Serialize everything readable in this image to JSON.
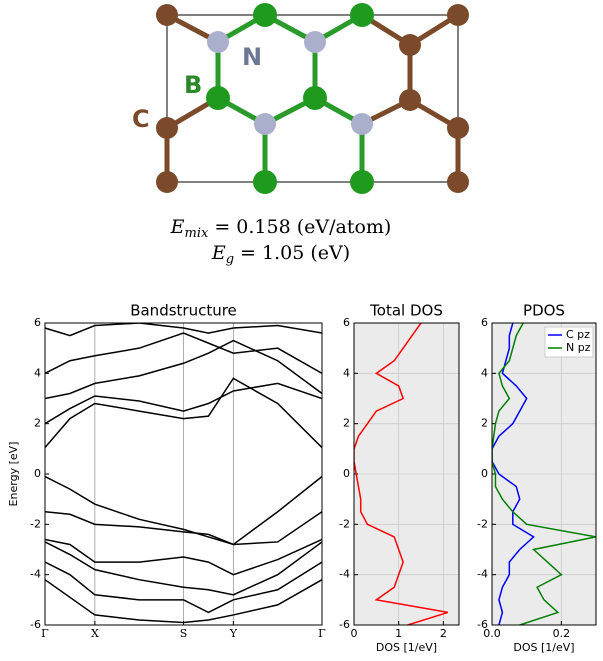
{
  "structure": {
    "labels": [
      "N",
      "B",
      "C"
    ]
  },
  "annotations": [
    {
      "symbol": "E",
      "subscript": "mix",
      "text": "= 0.158 (eV/atom)"
    },
    {
      "symbol": "E",
      "subscript": "g",
      "text": "= 1.05 (eV)"
    }
  ],
  "chart_data": [
    {
      "type": "line",
      "title": "Bandstructure",
      "ylabel": "Energy [eV]",
      "grid": "x",
      "background": "#ffffff",
      "x": [
        0,
        0.09,
        0.18,
        0.34,
        0.5,
        0.59,
        0.68,
        0.84,
        1.0
      ],
      "xlim": [
        0,
        1
      ],
      "xticks": [
        {
          "value": 0,
          "label": "Γ"
        },
        {
          "value": 0.18,
          "label": "X"
        },
        {
          "value": 0.5,
          "label": "S"
        },
        {
          "value": 0.68,
          "label": "Y"
        },
        {
          "value": 1.0,
          "label": "Γ"
        }
      ],
      "ylim": [
        -6,
        6
      ],
      "yticks": [
        -6,
        -4,
        -2,
        0,
        2,
        4,
        6
      ],
      "series": [
        {
          "color": "#000000",
          "values": [
            1.05,
            2.2,
            2.8,
            2.5,
            2.2,
            2.3,
            3.8,
            2.8,
            1.05
          ]
        },
        {
          "color": "#000000",
          "values": [
            2.0,
            2.6,
            3.1,
            2.9,
            2.5,
            2.8,
            3.3,
            3.6,
            3.0
          ]
        },
        {
          "color": "#000000",
          "values": [
            3.0,
            3.2,
            3.6,
            3.9,
            4.4,
            4.8,
            5.3,
            4.5,
            3.2
          ]
        },
        {
          "color": "#000000",
          "values": [
            4.0,
            4.5,
            4.7,
            5.0,
            5.6,
            5.2,
            4.8,
            5.0,
            4.0
          ]
        },
        {
          "color": "#000000",
          "values": [
            5.8,
            5.5,
            5.9,
            6.0,
            5.8,
            5.6,
            5.8,
            5.9,
            5.6
          ]
        },
        {
          "color": "#000000",
          "values": [
            -0.1,
            -0.6,
            -1.2,
            -1.8,
            -2.2,
            -2.5,
            -2.8,
            -1.5,
            -0.1
          ]
        },
        {
          "color": "#000000",
          "values": [
            -1.5,
            -1.6,
            -2.0,
            -2.1,
            -2.3,
            -2.4,
            -2.8,
            -2.7,
            -1.5
          ]
        },
        {
          "color": "#000000",
          "values": [
            -2.6,
            -2.8,
            -3.5,
            -3.5,
            -3.3,
            -3.5,
            -4.0,
            -3.4,
            -2.6
          ]
        },
        {
          "color": "#000000",
          "values": [
            -2.7,
            -3.2,
            -3.8,
            -4.2,
            -4.5,
            -4.6,
            -4.8,
            -4.0,
            -2.7
          ]
        },
        {
          "color": "#000000",
          "values": [
            -3.5,
            -4.0,
            -4.8,
            -5.0,
            -5.0,
            -5.5,
            -5.0,
            -4.6,
            -3.5
          ]
        },
        {
          "color": "#000000",
          "values": [
            -4.2,
            -4.9,
            -5.6,
            -5.8,
            -5.9,
            -5.8,
            -5.6,
            -5.2,
            -4.2
          ]
        }
      ]
    },
    {
      "type": "line",
      "title": "Total DOS",
      "xlabel": "DOS [1/eV]",
      "grid": "both",
      "background": "#ebebeb",
      "y": [
        6,
        5.5,
        5,
        4.5,
        4,
        3.5,
        3,
        2.5,
        2,
        1.5,
        1,
        0.5,
        0,
        -0.5,
        -1,
        -1.5,
        -2,
        -2.5,
        -3,
        -3.5,
        -4,
        -4.5,
        -5,
        -5.5,
        -6
      ],
      "xlim": [
        0,
        2.35
      ],
      "xticks": [
        0,
        1,
        2
      ],
      "ylim": [
        -6,
        6
      ],
      "yticks": [
        -6,
        -4,
        -2,
        0,
        2,
        4,
        6
      ],
      "series": [
        {
          "color": "#ff0000",
          "values": [
            1.5,
            1.3,
            1.1,
            0.9,
            0.5,
            1.0,
            1.1,
            0.5,
            0.3,
            0.1,
            0,
            0,
            0.05,
            0.1,
            0.15,
            0.15,
            0.3,
            0.9,
            1.0,
            1.1,
            1.0,
            0.9,
            0.5,
            2.1,
            1.2
          ]
        }
      ]
    },
    {
      "type": "line",
      "title": "PDOS",
      "xlabel": "DOS [1/eV]",
      "grid": "both",
      "background": "#ebebeb",
      "legend": "upper right",
      "y": [
        6,
        5.5,
        5,
        4.5,
        4,
        3.5,
        3,
        2.5,
        2,
        1.5,
        1,
        0.5,
        0,
        -0.5,
        -1,
        -1.5,
        -2,
        -2.5,
        -3,
        -3.5,
        -4,
        -4.5,
        -5,
        -5.5,
        -6
      ],
      "xlim": [
        0,
        0.3
      ],
      "xticks": [
        {
          "value": 0,
          "label": "0.0"
        },
        {
          "value": 0.2,
          "label": "0.2"
        }
      ],
      "ylim": [
        -6,
        6
      ],
      "yticks": [
        -6,
        -4,
        -2,
        0,
        2,
        4,
        6
      ],
      "series": [
        {
          "name": "C pz",
          "color": "#0000ff",
          "values": [
            0.06,
            0.05,
            0.05,
            0.04,
            0.03,
            0.07,
            0.1,
            0.08,
            0.06,
            0.02,
            0,
            0,
            0.02,
            0.07,
            0.08,
            0.06,
            0.06,
            0.12,
            0.08,
            0.05,
            0.05,
            0.03,
            0.02,
            0.03,
            0.02
          ]
        },
        {
          "name": "N pz",
          "color": "#008000",
          "values": [
            0.09,
            0.07,
            0.06,
            0.05,
            0.02,
            0.03,
            0.05,
            0.02,
            0.01,
            0.005,
            0,
            0,
            0.01,
            0.01,
            0.03,
            0.06,
            0.1,
            0.3,
            0.12,
            0.16,
            0.2,
            0.13,
            0.15,
            0.19,
            0.08
          ]
        }
      ]
    }
  ]
}
